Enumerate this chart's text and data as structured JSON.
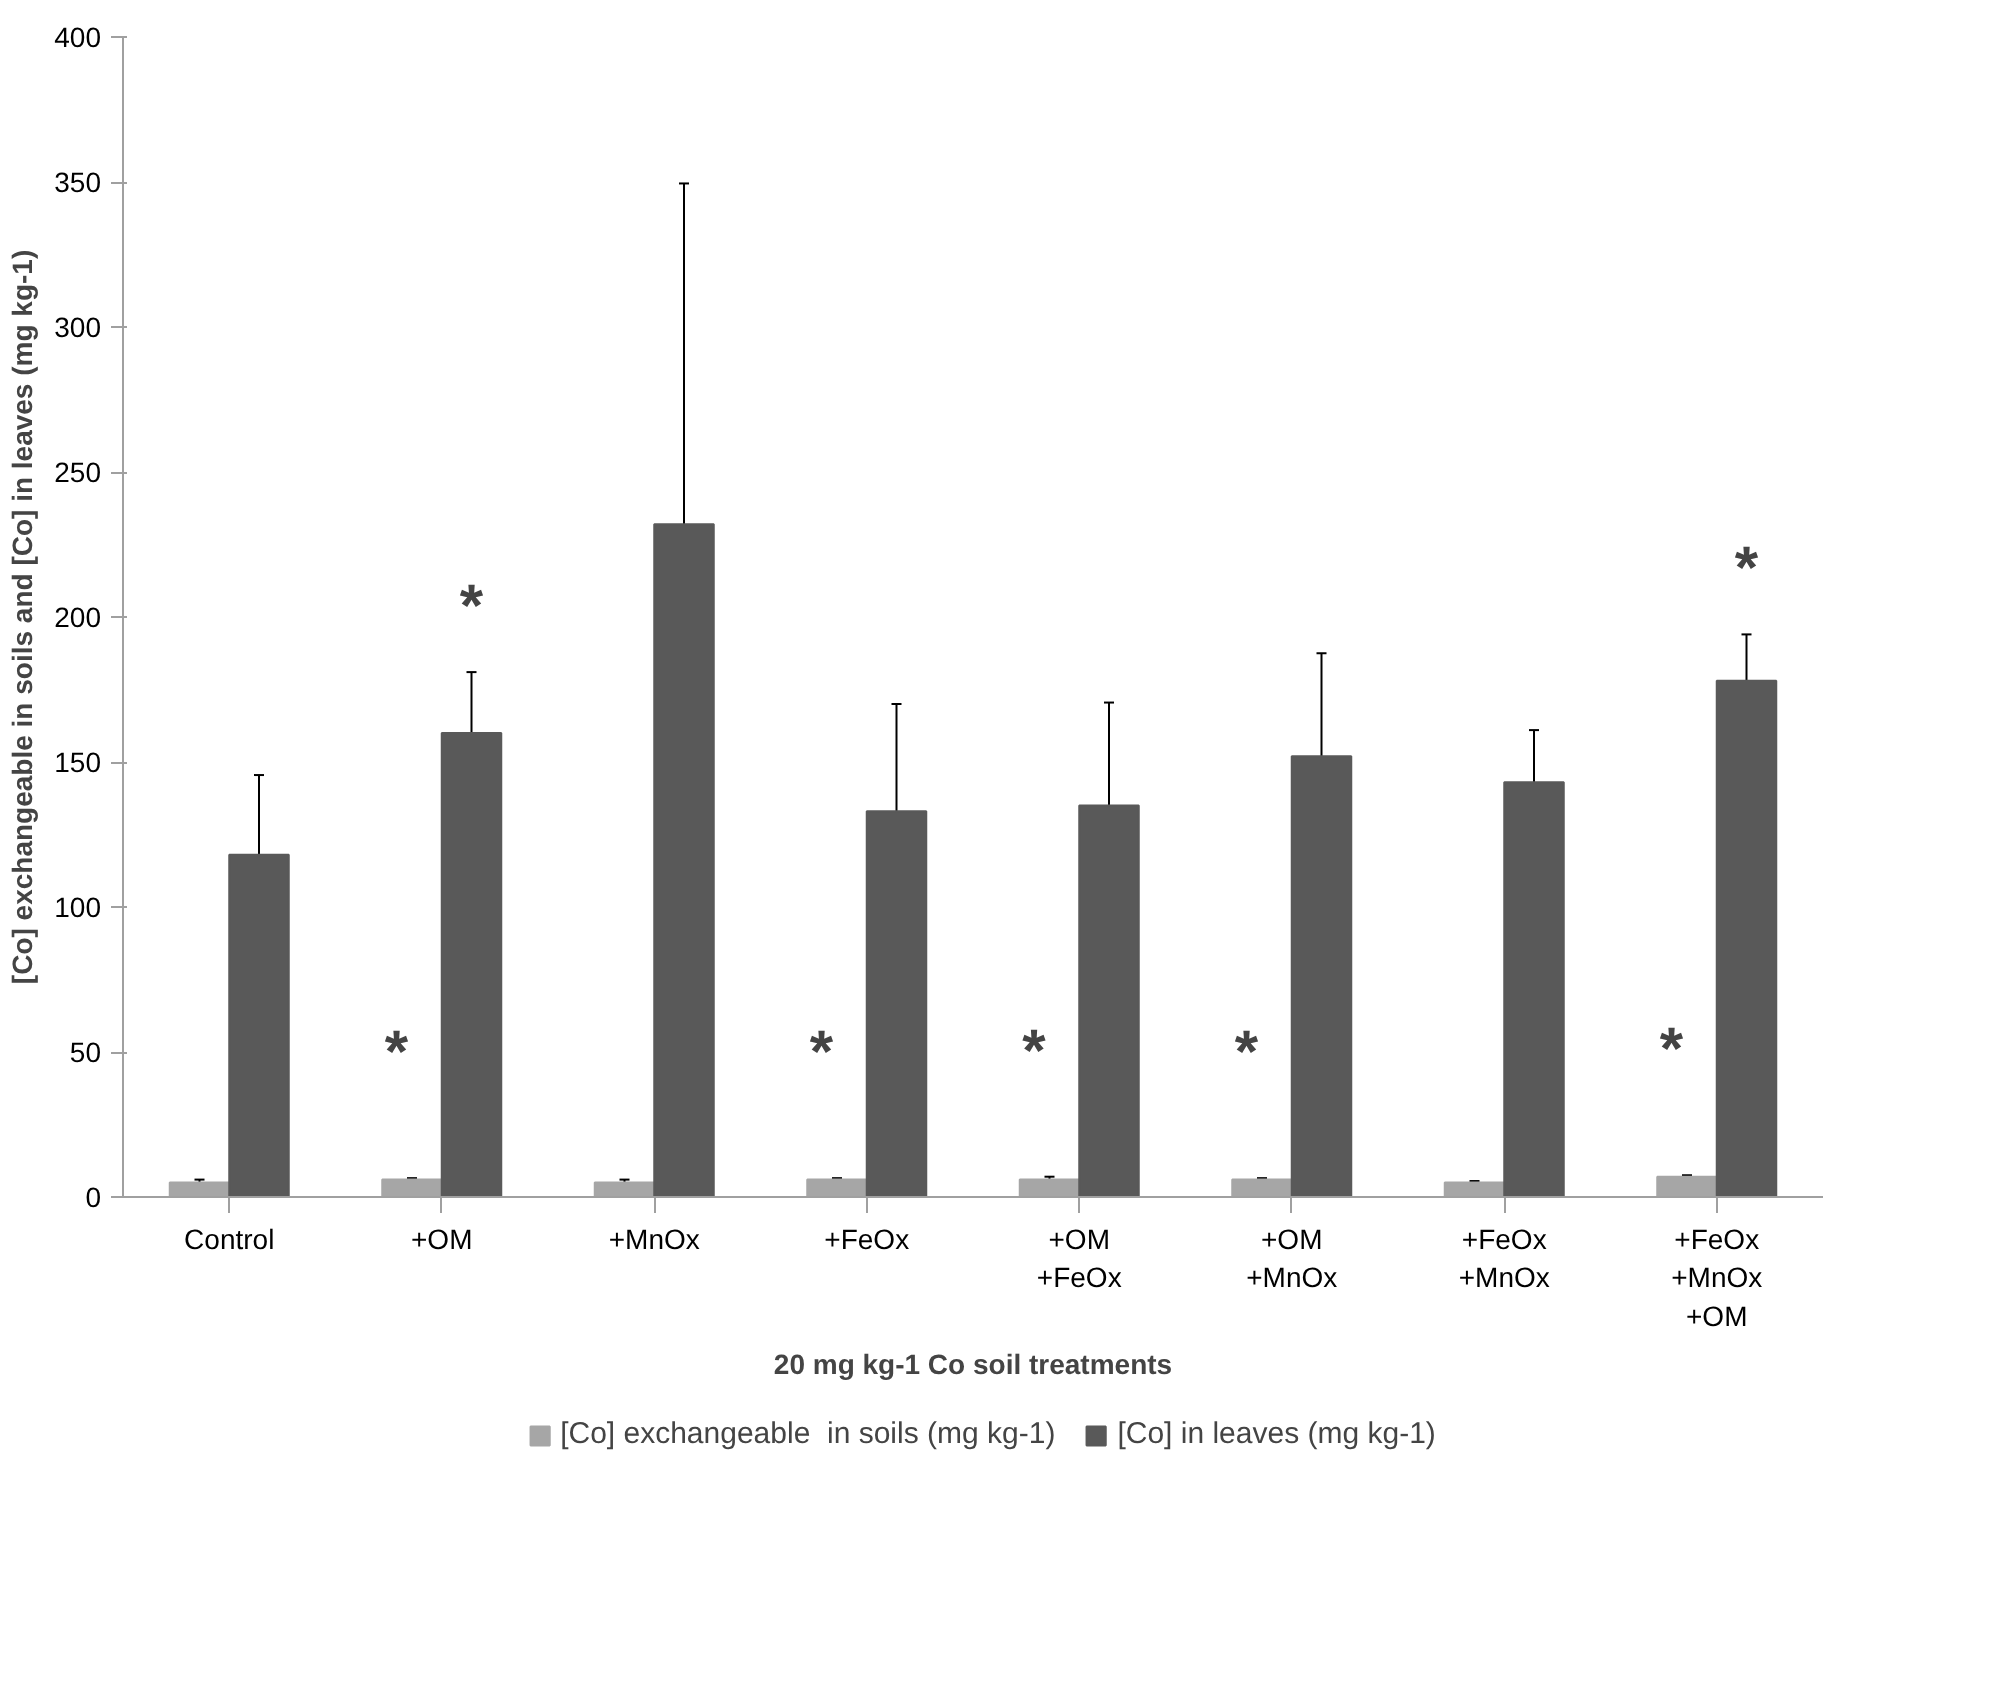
{
  "chart_data": {
    "type": "bar",
    "xlabel": "20 mg kg-1 Co soil treatments",
    "ylabel": "[Co] exchangeable in soils and [Co] in leaves (mg kg-1)",
    "categories": [
      "Control",
      "+OM",
      "+MnOx",
      "+FeOx",
      "+OM\n+FeOx",
      "+OM\n+MnOx",
      "+FeOx\n+MnOx",
      "+FeOx\n+MnOx\n+OM"
    ],
    "series": [
      {
        "name": "[Co] exchangeable  in soils (mg kg-1)",
        "color": "#a6a6a6",
        "values": [
          5,
          6,
          5,
          6,
          6,
          6,
          5,
          7
        ],
        "errors": [
          1,
          0.5,
          1,
          0.5,
          1,
          0.5,
          0.5,
          0.5
        ]
      },
      {
        "name": "[Co] in leaves (mg kg-1)",
        "color": "#595959",
        "values": [
          118,
          160,
          232,
          133,
          135,
          152,
          143,
          178
        ],
        "errors": [
          27.5,
          21,
          117.5,
          37,
          35.5,
          35.5,
          18,
          16
        ]
      }
    ],
    "ylim": [
      0,
      400
    ],
    "yticks": [
      0,
      50,
      100,
      150,
      200,
      250,
      300,
      350,
      400
    ],
    "grid": false,
    "legend": "bottom",
    "annotations": [
      {
        "text": "*",
        "x": "+OM",
        "y": 6
      },
      {
        "text": "*",
        "x": "+OM",
        "y": 160
      },
      {
        "text": "*",
        "x": "+FeOx",
        "y": 6
      },
      {
        "text": "*",
        "x": "+OM\n+FeOx",
        "y": 6
      },
      {
        "text": "*",
        "x": "+OM\n+MnOx",
        "y": 6
      },
      {
        "text": "*",
        "x": "+FeOx\n+MnOx\n+OM",
        "y": 7
      },
      {
        "text": "*",
        "x": "+FeOx\n+MnOx\n+OM",
        "y": 178
      }
    ]
  }
}
